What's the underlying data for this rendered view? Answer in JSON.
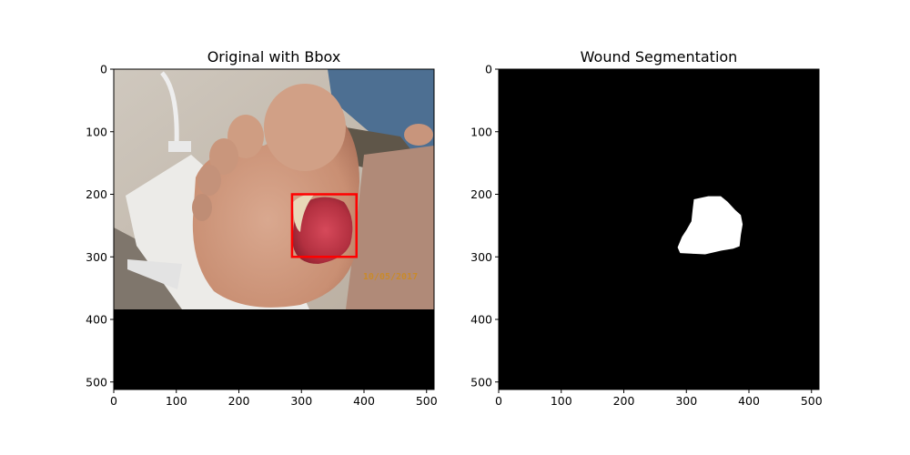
{
  "figure": {
    "panels": [
      {
        "title": "Original with Bbox",
        "x_ticks": [
          "0",
          "100",
          "200",
          "300",
          "400",
          "500"
        ],
        "y_ticks": [
          "0",
          "100",
          "200",
          "300",
          "400",
          "500"
        ],
        "x_range": [
          0,
          512
        ],
        "y_range": [
          512,
          0
        ],
        "image_content": "foot-photo",
        "photo_date_stamp": "10/05/2017",
        "photo_extent_rows": [
          0,
          384
        ],
        "padding_color": "#000000",
        "bbox": {
          "x0": 285,
          "y0": 200,
          "x1": 388,
          "y1": 300,
          "color": "#ff0000"
        }
      },
      {
        "title": "Wound Segmentation",
        "x_ticks": [
          "0",
          "100",
          "200",
          "300",
          "400",
          "500"
        ],
        "y_ticks": [
          "0",
          "100",
          "200",
          "300",
          "400",
          "500"
        ],
        "x_range": [
          0,
          512
        ],
        "y_range": [
          512,
          0
        ],
        "background_color": "#000000",
        "mask_color": "#ffffff",
        "mask_outline": [
          [
            312,
            208
          ],
          [
            335,
            203
          ],
          [
            355,
            203
          ],
          [
            366,
            212
          ],
          [
            378,
            225
          ],
          [
            387,
            233
          ],
          [
            390,
            248
          ],
          [
            387,
            265
          ],
          [
            385,
            283
          ],
          [
            375,
            287
          ],
          [
            356,
            290
          ],
          [
            330,
            296
          ],
          [
            308,
            295
          ],
          [
            290,
            294
          ],
          [
            286,
            285
          ],
          [
            293,
            268
          ],
          [
            300,
            257
          ],
          [
            308,
            243
          ],
          [
            310,
            225
          ]
        ]
      }
    ]
  }
}
